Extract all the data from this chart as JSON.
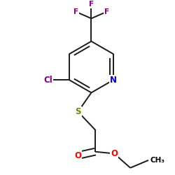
{
  "background_color": "#ffffff",
  "figsize": [
    2.5,
    2.5
  ],
  "dpi": 100,
  "atom_colors": {
    "N": "#0000cc",
    "Cl": "#800080",
    "S": "#808000",
    "O": "#ff0000",
    "F": "#800080",
    "C": "#000000"
  },
  "bond_color": "#1a1a1a",
  "bond_width": 1.4,
  "font_size_atoms": 8.5,
  "font_size_small": 7.5,
  "xlim": [
    0.05,
    0.95
  ],
  "ylim": [
    0.05,
    0.95
  ]
}
